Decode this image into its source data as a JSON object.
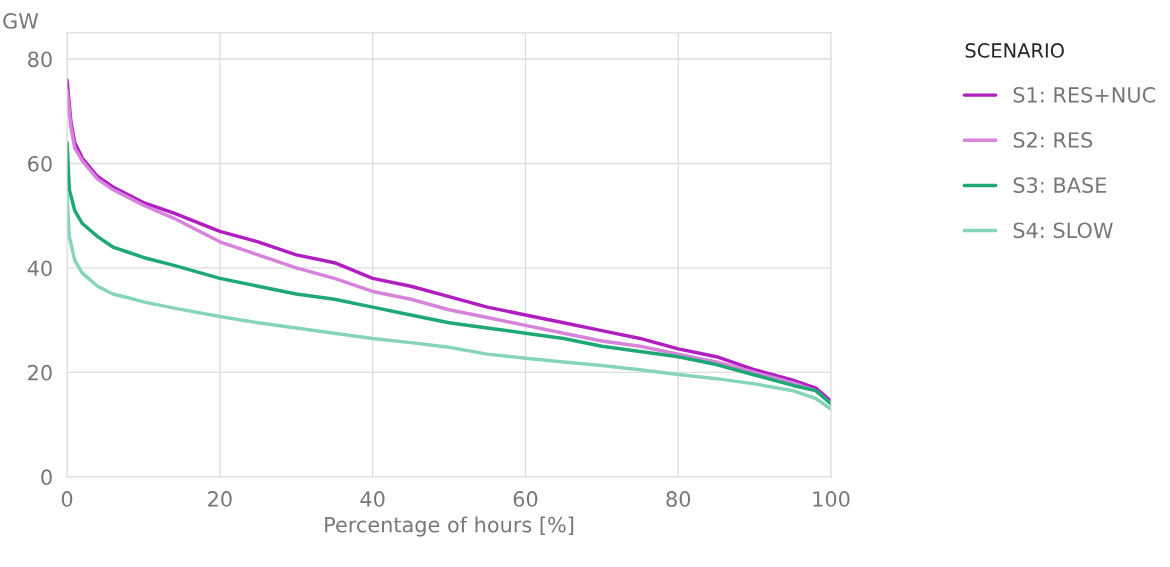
{
  "chart_data": {
    "type": "line",
    "ylabel": "GW",
    "xlabel": "Percentage of hours [%]",
    "legend_title": "SCENARIO",
    "xlim": [
      0,
      100
    ],
    "xticks": [
      0,
      20,
      40,
      60,
      80,
      100
    ],
    "ylim": [
      0,
      85
    ],
    "yticks": [
      0,
      20,
      40,
      60,
      80
    ],
    "grid": true,
    "legend": "right",
    "series": [
      {
        "name": "S1: RES+NUC",
        "color": "#b01ebf",
        "x": [
          0,
          0.5,
          1,
          2,
          4,
          6,
          8,
          10,
          14,
          20,
          25,
          30,
          35,
          40,
          45,
          50,
          55,
          60,
          65,
          70,
          75,
          80,
          85,
          90,
          95,
          98,
          100
        ],
        "values": [
          76,
          68,
          64,
          61,
          57.5,
          55.5,
          54,
          52.5,
          50.5,
          47,
          45,
          42.5,
          41,
          38,
          36.5,
          34.5,
          32.5,
          31,
          29.5,
          28,
          26.5,
          24.5,
          23,
          20.5,
          18.5,
          17,
          14.5
        ]
      },
      {
        "name": "S2: RES",
        "color": "#d683dc",
        "x": [
          0,
          0.5,
          1,
          2,
          4,
          6,
          8,
          10,
          14,
          20,
          25,
          30,
          35,
          40,
          45,
          50,
          55,
          60,
          65,
          70,
          75,
          80,
          85,
          90,
          95,
          98,
          100
        ],
        "values": [
          74,
          67,
          63,
          60.5,
          57,
          55,
          53.5,
          52,
          49.5,
          45,
          42.5,
          40,
          38,
          35.5,
          34,
          32,
          30.5,
          29,
          27.5,
          26,
          25,
          23.5,
          22,
          20,
          18,
          16.5,
          14
        ]
      },
      {
        "name": "S3: BASE",
        "color": "#1ea876",
        "x": [
          0,
          0.3,
          1,
          2,
          4,
          6,
          8,
          10,
          14,
          20,
          25,
          30,
          35,
          40,
          45,
          50,
          55,
          60,
          65,
          70,
          75,
          80,
          85,
          90,
          95,
          98,
          100
        ],
        "values": [
          64,
          55,
          51,
          48.5,
          46,
          44,
          43,
          42,
          40.5,
          38,
          36.5,
          35,
          34,
          32.5,
          31,
          29.5,
          28.5,
          27.5,
          26.5,
          25,
          24,
          23,
          21.5,
          19.5,
          17.5,
          16.5,
          14
        ]
      },
      {
        "name": "S4: SLOW",
        "color": "#86d5b8",
        "x": [
          0,
          0.3,
          1,
          2,
          4,
          6,
          8,
          10,
          14,
          20,
          25,
          30,
          35,
          40,
          45,
          50,
          55,
          60,
          65,
          70,
          75,
          80,
          85,
          90,
          95,
          98,
          100
        ],
        "values": [
          54,
          46,
          41.5,
          39,
          36.5,
          35,
          34.3,
          33.5,
          32.3,
          30.7,
          29.5,
          28.5,
          27.5,
          26.5,
          25.7,
          24.8,
          23.5,
          22.7,
          22,
          21.3,
          20.5,
          19.6,
          18.8,
          17.8,
          16.5,
          15,
          13
        ]
      }
    ]
  }
}
